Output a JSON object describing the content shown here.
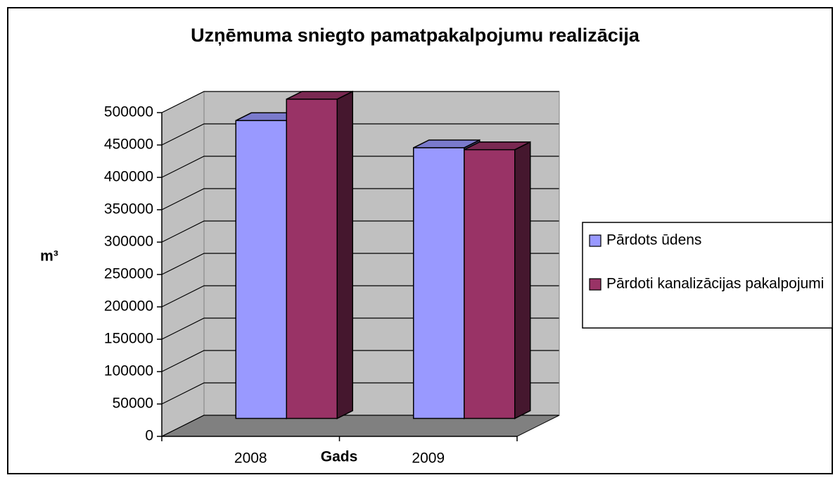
{
  "chart_data": {
    "type": "bar3d",
    "title": "Uzņēmuma sniegto pamatpakalpojumu realizācija",
    "x_label": "Gads",
    "y_label": "m³",
    "categories": [
      "2008",
      "2009"
    ],
    "series": [
      {
        "name": "Pārdots ūdens",
        "color": "#9999ff",
        "values": [
          460000,
          418000
        ]
      },
      {
        "name": "Pārdoti kanalizācijas pakalpojumi",
        "color": "#993366",
        "values": [
          493000,
          415000
        ]
      }
    ],
    "ylim": [
      0,
      500000
    ],
    "yticks": [
      0,
      50000,
      100000,
      150000,
      200000,
      250000,
      300000,
      350000,
      400000,
      450000,
      500000
    ],
    "grid": true,
    "legend": "right"
  }
}
